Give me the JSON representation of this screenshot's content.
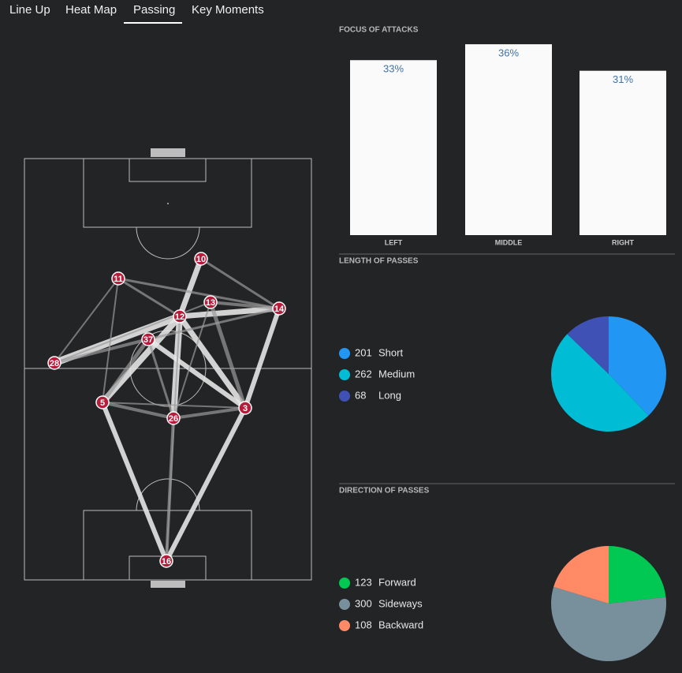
{
  "tabs": [
    "Line Up",
    "Heat Map",
    "Passing",
    "Key Moments"
  ],
  "focus_of_attacks": {
    "type": "bar",
    "title": "FOCUS OF ATTACKS",
    "categories": [
      "LEFT",
      "MIDDLE",
      "RIGHT"
    ],
    "values": [
      33,
      36,
      31
    ],
    "value_labels": [
      "33%",
      "36%",
      "31%"
    ],
    "color": "#fafafa"
  },
  "length_of_passes": {
    "type": "pie",
    "title": "LENGTH OF PASSES",
    "series": [
      {
        "name": "Short",
        "value": 201,
        "color": "#2196f3"
      },
      {
        "name": "Medium",
        "value": 262,
        "color": "#00bcd4"
      },
      {
        "name": "Long",
        "value": 68,
        "color": "#3f51b5"
      }
    ]
  },
  "direction_of_passes": {
    "type": "pie",
    "title": "DIRECTION OF PASSES",
    "series": [
      {
        "name": "Forward",
        "value": 123,
        "color": "#00c853"
      },
      {
        "name": "Sideways",
        "value": 300,
        "color": "#78909c"
      },
      {
        "name": "Backward",
        "value": 108,
        "color": "#ff8a65"
      }
    ]
  },
  "pitch": {
    "players": [
      "10",
      "11",
      "13",
      "14",
      "12",
      "37",
      "28",
      "5",
      "26",
      "3",
      "16"
    ]
  }
}
